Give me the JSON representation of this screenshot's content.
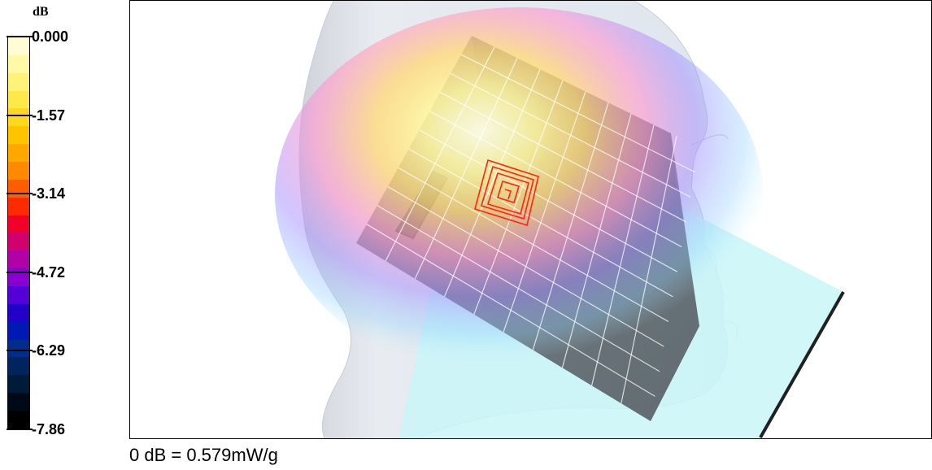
{
  "legend": {
    "unit": "dB",
    "ticks": [
      "0.000",
      "-1.57",
      "-3.14",
      "-4.72",
      "-6.29",
      "-7.86"
    ],
    "colors": [
      "#fffcd6",
      "#fff9a8",
      "#fff27a",
      "#ffe94a",
      "#ffd81e",
      "#ffc400",
      "#ffa800",
      "#ff8a00",
      "#ff5e00",
      "#ff2a00",
      "#f0002a",
      "#d2006e",
      "#b000a6",
      "#8a00d2",
      "#5400d6",
      "#2200c8",
      "#0018b4",
      "#002c8c",
      "#00245e",
      "#001a3a",
      "#000a16",
      "#000000"
    ]
  },
  "footnote": "0 dB = 0.579mW/g",
  "scene": {
    "head_color": "#e6eaf0",
    "phone_color": "#5e636b",
    "plane_color": "#c9f6f8",
    "contour_color": "#ff2020"
  }
}
